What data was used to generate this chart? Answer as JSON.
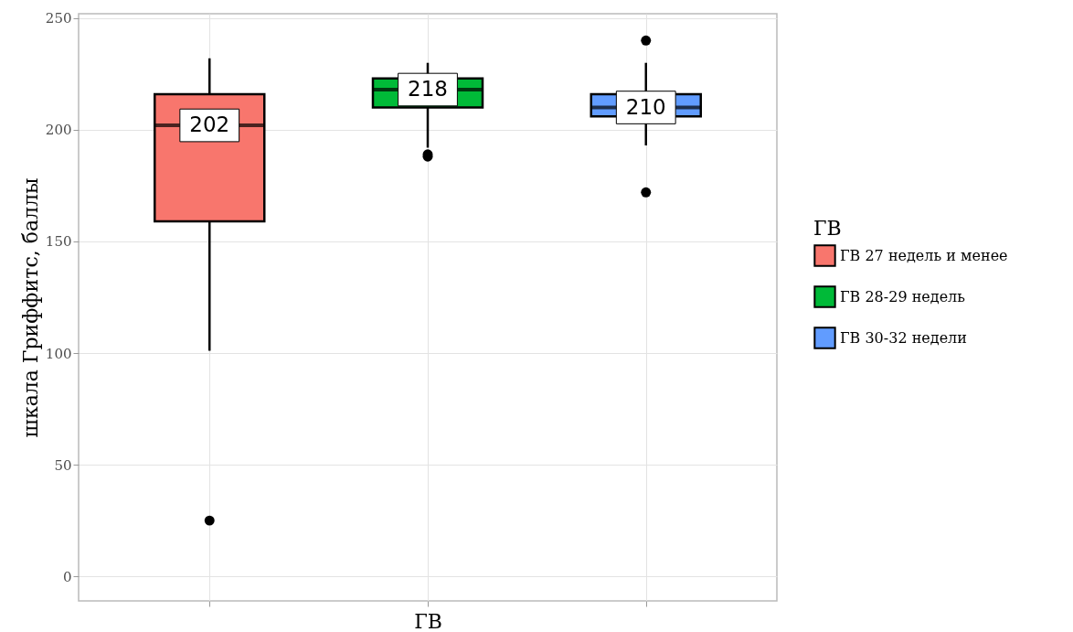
{
  "chart_data": {
    "type": "box",
    "xlabel": "ГВ",
    "ylabel": "шкала Гриффитс, баллы",
    "legend_title": "ГВ",
    "legend": "right",
    "grid": true,
    "categories": [
      null,
      null,
      null
    ],
    "ylim": [
      -11,
      252
    ],
    "yticks": [
      0,
      50,
      100,
      150,
      200,
      250
    ],
    "series": [
      {
        "name": "ГВ 27 недель и менее",
        "color": "#f8766d",
        "boxes": [
          {
            "low": 101,
            "q1": 159,
            "median": 202,
            "q3": 216,
            "high": 232,
            "outliers": [
              25
            ]
          },
          null,
          null
        ],
        "value_labels": [
          "202",
          null,
          null
        ]
      },
      {
        "name": "ГВ 28-29 недель",
        "color": "#00ba38",
        "boxes": [
          null,
          {
            "low": 192,
            "q1": 210,
            "median": 218,
            "q3": 223,
            "high": 230,
            "outliers": [
              189,
              188
            ]
          },
          null
        ],
        "value_labels": [
          null,
          "218",
          null
        ]
      },
      {
        "name": "ГВ 30-32 недели",
        "color": "#619cff",
        "boxes": [
          null,
          null,
          {
            "low": 193,
            "q1": 206,
            "median": 210,
            "q3": 216,
            "high": 230,
            "outliers": [
              240,
              172
            ]
          }
        ],
        "value_labels": [
          null,
          null,
          "210"
        ]
      }
    ]
  }
}
